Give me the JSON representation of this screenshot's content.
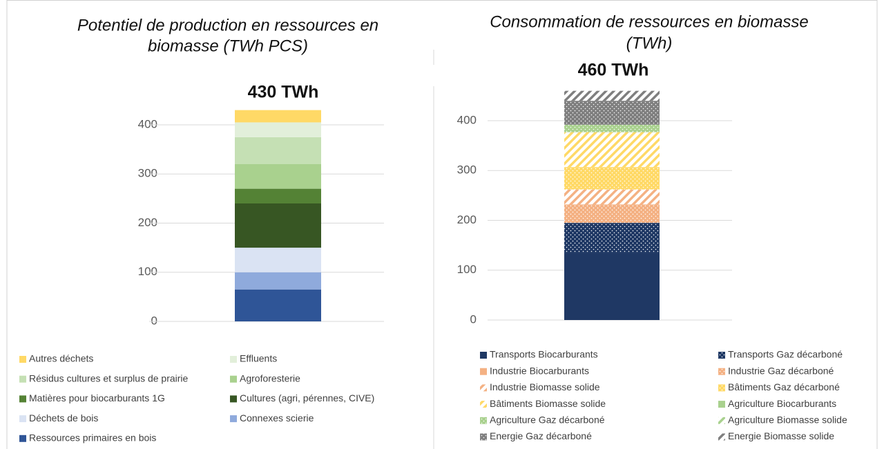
{
  "chart_data": [
    {
      "type": "bar",
      "stacked": true,
      "title": [
        "Potentiel de production en ressources en",
        "biomasse (TWh PCS)"
      ],
      "total_label": "430 TWh",
      "ylim": [
        0,
        450
      ],
      "yticks": [
        0,
        100,
        200,
        300,
        400
      ],
      "grid": true,
      "series": [
        {
          "name": "Ressources primaires en bois",
          "color": "#2f5597",
          "pattern": "solid",
          "values": [
            65
          ]
        },
        {
          "name": "Connexes scierie",
          "color": "#8faadc",
          "pattern": "solid",
          "values": [
            35
          ]
        },
        {
          "name": "Déchets de bois",
          "color": "#dae3f3",
          "pattern": "solid",
          "values": [
            50
          ]
        },
        {
          "name": "Cultures (agri, pérennes, CIVE)",
          "color": "#375623",
          "pattern": "solid",
          "values": [
            90
          ]
        },
        {
          "name": "Matières pour biocarburants 1G",
          "color": "#548235",
          "pattern": "solid",
          "values": [
            30
          ]
        },
        {
          "name": "Agroforesterie",
          "color": "#a9d18e",
          "pattern": "solid",
          "values": [
            50
          ]
        },
        {
          "name": "Résidus cultures et surplus de prairie",
          "color": "#c5e0b4",
          "pattern": "solid",
          "values": [
            55
          ]
        },
        {
          "name": "Effluents",
          "color": "#e2efda",
          "pattern": "solid",
          "values": [
            30
          ]
        },
        {
          "name": "Autres déchets",
          "color": "#ffd966",
          "pattern": "solid",
          "values": [
            25
          ]
        }
      ]
    },
    {
      "type": "bar",
      "stacked": true,
      "title": [
        "Consommation de ressources en biomasse",
        "(TWh)"
      ],
      "total_label": "460 TWh",
      "ylim": [
        0,
        450
      ],
      "yticks": [
        0,
        100,
        200,
        300,
        400
      ],
      "grid": true,
      "series": [
        {
          "name": "Transports Biocarburants",
          "color": "#1f3864",
          "pattern": "solid",
          "values": [
            135
          ]
        },
        {
          "name": "Transports Gaz décarboné",
          "color": "#1f3864",
          "pattern": "dots",
          "values": [
            60
          ]
        },
        {
          "name": "Industrie Biocarburants",
          "color": "#f4b183",
          "pattern": "solid",
          "values": [
            0
          ]
        },
        {
          "name": "Industrie Gaz décarboné",
          "color": "#f4b183",
          "pattern": "dots",
          "values": [
            37
          ]
        },
        {
          "name": "Industrie Biomasse solide",
          "color": "#f4b183",
          "pattern": "hatch",
          "values": [
            30
          ]
        },
        {
          "name": "Bâtiments Gaz décarboné",
          "color": "#ffd966",
          "pattern": "dots",
          "values": [
            45
          ]
        },
        {
          "name": "Bâtiments Biomasse solide",
          "color": "#ffd966",
          "pattern": "hatch",
          "values": [
            70
          ]
        },
        {
          "name": "Agriculture Biocarburants",
          "color": "#a9d18e",
          "pattern": "solid",
          "values": [
            0
          ]
        },
        {
          "name": "Agriculture Gaz décarboné",
          "color": "#a9d18e",
          "pattern": "dots",
          "values": [
            15
          ]
        },
        {
          "name": "Agriculture Biomasse solide",
          "color": "#a9d18e",
          "pattern": "hatch",
          "values": [
            0
          ]
        },
        {
          "name": "Energie Gaz décarboné",
          "color": "#7f7f7f",
          "pattern": "dots",
          "values": [
            48
          ]
        },
        {
          "name": "Energie Biomasse solide",
          "color": "#7f7f7f",
          "pattern": "hatch",
          "values": [
            20
          ]
        }
      ]
    }
  ]
}
